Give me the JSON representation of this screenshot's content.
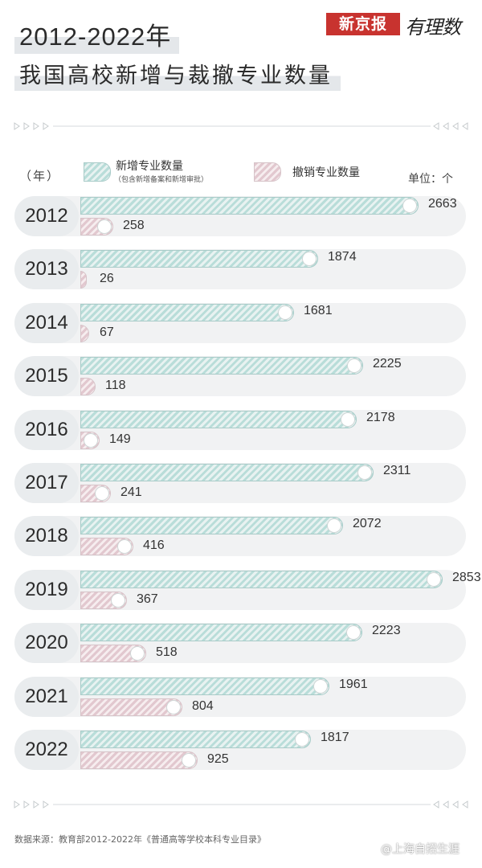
{
  "header": {
    "title_line1": "2012-2022年",
    "title_line2": "我国高校新增与裁撤专业数量",
    "logo_text": "新京报",
    "logo_script": "有理数"
  },
  "legend": {
    "year_label": "（年）",
    "new_label": "新增专业数量",
    "new_sublabel": "（包含新增备案和新增审批）",
    "del_label": "撤销专业数量",
    "unit": "单位：个"
  },
  "colors": {
    "new_series": "#b9ddd9",
    "del_series": "#e2c8cf",
    "row_background": "#f1f2f3",
    "logo_red": "#c8332f"
  },
  "chart_data": {
    "type": "bar",
    "orientation": "horizontal",
    "categories": [
      "2012",
      "2013",
      "2014",
      "2015",
      "2016",
      "2017",
      "2018",
      "2019",
      "2020",
      "2021",
      "2022"
    ],
    "series": [
      {
        "name": "新增专业数量",
        "values": [
          2663,
          1874,
          1681,
          2225,
          2178,
          2311,
          2072,
          2853,
          2223,
          1961,
          1817
        ]
      },
      {
        "name": "撤销专业数量",
        "values": [
          258,
          26,
          67,
          118,
          149,
          241,
          416,
          367,
          518,
          804,
          925
        ]
      }
    ]
  },
  "footer": {
    "source": "数据来源：教育部2012-2022年《普通高等学校本科专业目录》",
    "watermark": "@上海自招生涯"
  }
}
